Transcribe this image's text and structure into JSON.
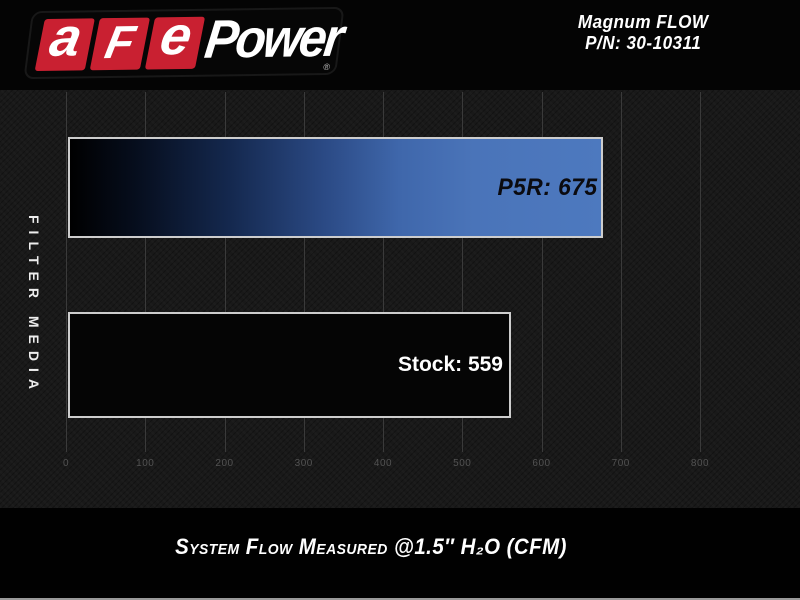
{
  "header": {
    "logo": {
      "tiles": [
        "a",
        "F",
        "e"
      ],
      "power_text": "Power",
      "registered": "®"
    },
    "product": {
      "line1": "Magnum FLOW",
      "line2": "P/N: 30-10311"
    }
  },
  "chart_data": {
    "type": "bar",
    "orientation": "horizontal",
    "categories": [
      "P5R",
      "Stock"
    ],
    "values": [
      675,
      559
    ],
    "bar_labels": [
      "P5R: 675",
      "Stock: 559"
    ],
    "ylabel": "FILTER MEDIA",
    "xlabel": "",
    "x_ticks": [
      0,
      100,
      200,
      300,
      400,
      500,
      600,
      700,
      800
    ],
    "xlim": [
      0,
      800
    ],
    "grid": true,
    "legend_position": "none",
    "caption": "System Flow Measured @1.5″ H₂O (CFM)",
    "colors": {
      "p5r_bar_gradient_end": "#4d79bf",
      "stock_bar_fill": "#050505",
      "bar_border": "#cdcdcd",
      "gridline": "#3a3a3a",
      "tick_text": "#525252",
      "chart_background": "#191919",
      "brand_red": "#c92031"
    }
  }
}
